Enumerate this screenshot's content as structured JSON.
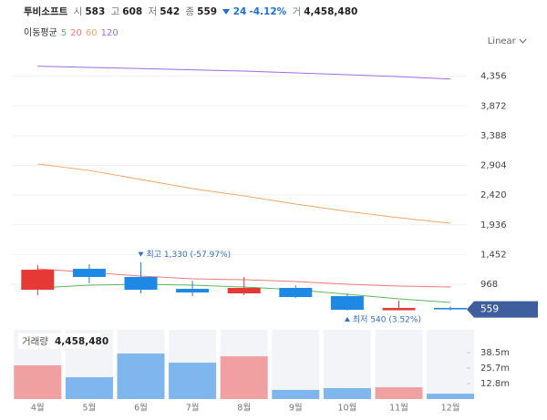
{
  "header": {
    "name": "투비소프트",
    "quote": [
      {
        "label": "시",
        "value": "583"
      },
      {
        "label": "고",
        "value": "608"
      },
      {
        "label": "저",
        "value": "542"
      },
      {
        "label": "종",
        "value": "559"
      }
    ],
    "change": "24",
    "change_pct": "-4.12%",
    "volume_label": "거",
    "volume": "4,458,480"
  },
  "ma_label": "이동평균",
  "scale_mode": "Linear",
  "chart_data": [
    {
      "type": "candlestick",
      "categories": [
        "4월",
        "5월",
        "6월",
        "7월",
        "8월",
        "9월",
        "10월",
        "11월",
        "12월"
      ],
      "open": [
        879,
        1220,
        1087,
        894,
        820,
        909,
        775,
        545,
        583
      ],
      "high": [
        1280,
        1294,
        1330,
        1027,
        1087,
        953,
        820,
        700,
        608
      ],
      "low": [
        790,
        983,
        820,
        775,
        790,
        745,
        540,
        548,
        542
      ],
      "close": [
        1205,
        1087,
        879,
        834,
        909,
        760,
        553,
        583,
        559
      ],
      "up_color": "#e53935",
      "down_color": "#1e88e5",
      "moving_averages": [
        {
          "name": "5",
          "color": "#5cb85c",
          "values": [
            909,
            953,
            968,
            953,
            923,
            879,
            805,
            731,
            671
          ]
        },
        {
          "name": "20",
          "color": "#f07a7a",
          "values": [
            1220,
            1161,
            1102,
            1057,
            1042,
            1013,
            968,
            938,
            923
          ]
        },
        {
          "name": "60",
          "color": "#f0a868",
          "values": [
            2926,
            2822,
            2675,
            2526,
            2407,
            2274,
            2155,
            2051,
            1962
          ]
        },
        {
          "name": "120",
          "color": "#9b6ee6",
          "values": [
            4520,
            4500,
            4480,
            4460,
            4440,
            4410,
            4380,
            4350,
            4310
          ]
        }
      ],
      "ylim": [
        375,
        4707
      ],
      "yticks": [
        {
          "value": 968,
          "label": "968"
        },
        {
          "value": 1452,
          "label": "1,452"
        },
        {
          "value": 1936,
          "label": "1,936"
        },
        {
          "value": 2420,
          "label": "2,420"
        },
        {
          "value": 2904,
          "label": "2,904"
        },
        {
          "value": 3388,
          "label": "3,388"
        },
        {
          "value": 3872,
          "label": "3,872"
        },
        {
          "value": 4356,
          "label": "4,356"
        }
      ],
      "grid": true,
      "annotations": [
        {
          "x": "6월",
          "y": 1330,
          "text": "최고 1,330 (-57.97%)",
          "color": "#2f6fc4",
          "direction": "down"
        },
        {
          "x": "10월",
          "y": 540,
          "text": "최저 540 (3.52%)",
          "color": "#2f6fc4",
          "direction": "up"
        }
      ],
      "last_price": 559,
      "last_price_color": "#3f5e9e"
    },
    {
      "type": "bar",
      "title": "거래량",
      "title_value": "4,458,480",
      "categories": [
        "4월",
        "5월",
        "6월",
        "7월",
        "8월",
        "9월",
        "10월",
        "11월",
        "12월"
      ],
      "values": [
        28000000,
        18100000,
        37800000,
        30200000,
        35500000,
        7600000,
        9100000,
        9800000,
        4458480
      ],
      "colors": [
        "#f0a0a0",
        "#7fb6ee",
        "#7fb6ee",
        "#7fb6ee",
        "#f0a0a0",
        "#7fb6ee",
        "#7fb6ee",
        "#f0a0a0",
        "#7fb6ee"
      ],
      "ylim": [
        0,
        57500000
      ],
      "yticks": [
        {
          "value": 12800000,
          "label": "12.8m"
        },
        {
          "value": 25700000,
          "label": "25.7m"
        },
        {
          "value": 38500000,
          "label": "38.5m"
        }
      ]
    }
  ]
}
